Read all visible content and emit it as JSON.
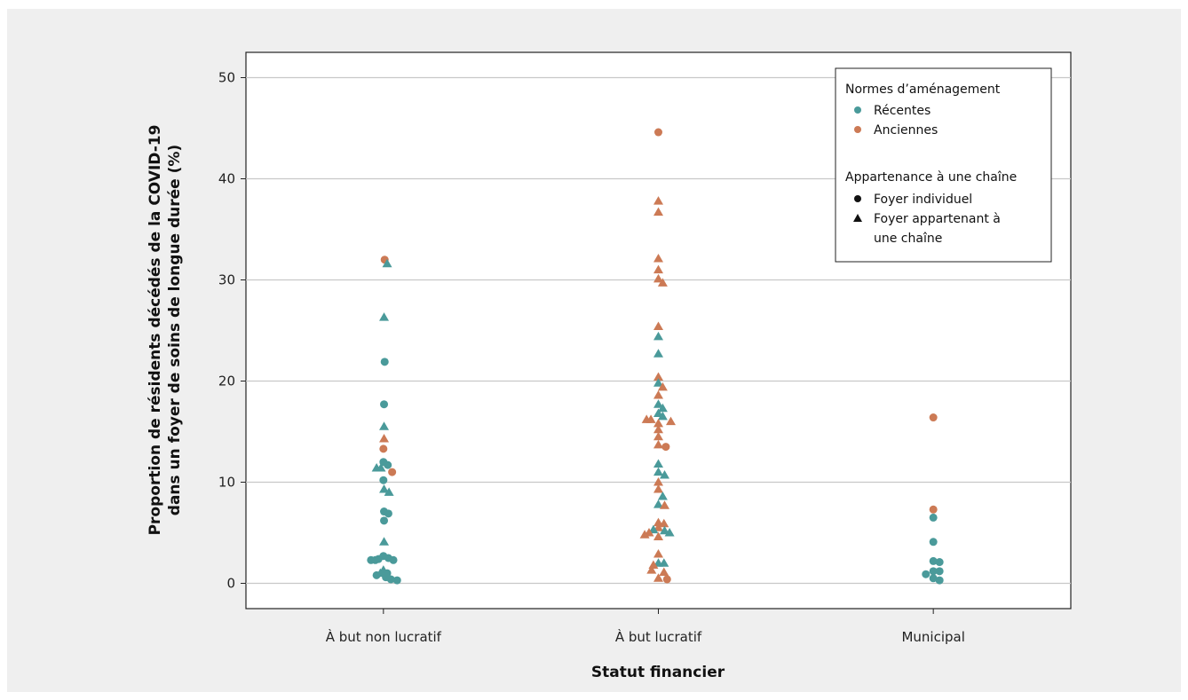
{
  "chart_data": {
    "type": "scatter",
    "xlabel": "Statut financier",
    "ylabel": [
      "Proportion de résidents décédés de la COVID-19",
      "dans un foyer de soins de longue durée (%)"
    ],
    "ylim": [
      -2.5,
      52.5
    ],
    "yticks": [
      0,
      10,
      20,
      30,
      40,
      50
    ],
    "grid": true,
    "legend_position": "top-right",
    "categories": [
      "À but non lucratif",
      "À but lucratif",
      "Municipal"
    ],
    "colors": {
      "Récentes": "#4a9a9a",
      "Anciennes": "#cc7a55"
    },
    "legend": {
      "color_title": "Normes d’aménagement",
      "color_items": [
        "Récentes",
        "Anciennes"
      ],
      "shape_title": "Appartenance à une chaîne",
      "shape_items": [
        "Foyer individuel",
        "Foyer appartenant à une chaîne"
      ]
    },
    "series": [
      {
        "category": "À but non lucratif",
        "points": [
          {
            "y": 32.0,
            "jitter": 0.2,
            "standard": "Anciennes",
            "shape": "circle"
          },
          {
            "y": 31.6,
            "jitter": 0.6,
            "standard": "Récentes",
            "shape": "triangle"
          },
          {
            "y": 26.3,
            "jitter": 0.1,
            "standard": "Récentes",
            "shape": "triangle"
          },
          {
            "y": 21.9,
            "jitter": 0.2,
            "standard": "Récentes",
            "shape": "circle"
          },
          {
            "y": 17.7,
            "jitter": 0.1,
            "standard": "Récentes",
            "shape": "circle"
          },
          {
            "y": 15.5,
            "jitter": 0.1,
            "standard": "Récentes",
            "shape": "triangle"
          },
          {
            "y": 14.3,
            "jitter": 0.1,
            "standard": "Anciennes",
            "shape": "triangle"
          },
          {
            "y": 13.3,
            "jitter": 0.0,
            "standard": "Anciennes",
            "shape": "circle"
          },
          {
            "y": 12.0,
            "jitter": 0.0,
            "standard": "Récentes",
            "shape": "circle"
          },
          {
            "y": 11.7,
            "jitter": 0.7,
            "standard": "Récentes",
            "shape": "circle"
          },
          {
            "y": 11.4,
            "jitter": -1.1,
            "standard": "Récentes",
            "shape": "triangle"
          },
          {
            "y": 11.4,
            "jitter": -0.4,
            "standard": "Récentes",
            "shape": "triangle"
          },
          {
            "y": 11.0,
            "jitter": 1.4,
            "standard": "Anciennes",
            "shape": "circle"
          },
          {
            "y": 10.2,
            "jitter": 0.0,
            "standard": "Récentes",
            "shape": "circle"
          },
          {
            "y": 9.3,
            "jitter": 0.1,
            "standard": "Récentes",
            "shape": "triangle"
          },
          {
            "y": 9.0,
            "jitter": 0.9,
            "standard": "Récentes",
            "shape": "triangle"
          },
          {
            "y": 7.1,
            "jitter": 0.1,
            "standard": "Récentes",
            "shape": "circle"
          },
          {
            "y": 6.9,
            "jitter": 0.8,
            "standard": "Récentes",
            "shape": "circle"
          },
          {
            "y": 6.2,
            "jitter": 0.1,
            "standard": "Récentes",
            "shape": "circle"
          },
          {
            "y": 4.1,
            "jitter": 0.1,
            "standard": "Récentes",
            "shape": "triangle"
          },
          {
            "y": 2.7,
            "jitter": 0.0,
            "standard": "Récentes",
            "shape": "circle"
          },
          {
            "y": 2.5,
            "jitter": 0.8,
            "standard": "Récentes",
            "shape": "circle"
          },
          {
            "y": 2.4,
            "jitter": -0.8,
            "standard": "Récentes",
            "shape": "circle"
          },
          {
            "y": 2.3,
            "jitter": -2.0,
            "standard": "Récentes",
            "shape": "circle"
          },
          {
            "y": 2.3,
            "jitter": -1.3,
            "standard": "Récentes",
            "shape": "circle"
          },
          {
            "y": 2.3,
            "jitter": 1.6,
            "standard": "Récentes",
            "shape": "circle"
          },
          {
            "y": 1.3,
            "jitter": 0.0,
            "standard": "Récentes",
            "shape": "triangle"
          },
          {
            "y": 1.0,
            "jitter": -0.5,
            "standard": "Récentes",
            "shape": "triangle"
          },
          {
            "y": 1.0,
            "jitter": 0.6,
            "standard": "Récentes",
            "shape": "circle"
          },
          {
            "y": 0.8,
            "jitter": -1.1,
            "standard": "Récentes",
            "shape": "circle"
          },
          {
            "y": 0.6,
            "jitter": 0.4,
            "standard": "Récentes",
            "shape": "circle"
          },
          {
            "y": 0.4,
            "jitter": 1.2,
            "standard": "Récentes",
            "shape": "circle"
          },
          {
            "y": 0.3,
            "jitter": 2.2,
            "standard": "Récentes",
            "shape": "circle"
          }
        ]
      },
      {
        "category": "À but lucratif",
        "points": [
          {
            "y": 44.6,
            "jitter": 0.0,
            "standard": "Anciennes",
            "shape": "circle"
          },
          {
            "y": 37.8,
            "jitter": 0.0,
            "standard": "Anciennes",
            "shape": "triangle"
          },
          {
            "y": 36.7,
            "jitter": 0.0,
            "standard": "Anciennes",
            "shape": "triangle"
          },
          {
            "y": 32.1,
            "jitter": 0.0,
            "standard": "Anciennes",
            "shape": "triangle"
          },
          {
            "y": 31.0,
            "jitter": 0.0,
            "standard": "Anciennes",
            "shape": "triangle"
          },
          {
            "y": 30.1,
            "jitter": 0.0,
            "standard": "Anciennes",
            "shape": "triangle"
          },
          {
            "y": 29.7,
            "jitter": 0.7,
            "standard": "Anciennes",
            "shape": "triangle"
          },
          {
            "y": 25.4,
            "jitter": 0.0,
            "standard": "Anciennes",
            "shape": "triangle"
          },
          {
            "y": 24.4,
            "jitter": 0.0,
            "standard": "Récentes",
            "shape": "triangle"
          },
          {
            "y": 22.7,
            "jitter": 0.0,
            "standard": "Récentes",
            "shape": "triangle"
          },
          {
            "y": 20.4,
            "jitter": 0.0,
            "standard": "Anciennes",
            "shape": "triangle"
          },
          {
            "y": 19.8,
            "jitter": 0.0,
            "standard": "Récentes",
            "shape": "triangle"
          },
          {
            "y": 19.4,
            "jitter": 0.7,
            "standard": "Anciennes",
            "shape": "triangle"
          },
          {
            "y": 18.6,
            "jitter": 0.0,
            "standard": "Anciennes",
            "shape": "triangle"
          },
          {
            "y": 17.7,
            "jitter": 0.0,
            "standard": "Récentes",
            "shape": "triangle"
          },
          {
            "y": 17.3,
            "jitter": 0.7,
            "standard": "Récentes",
            "shape": "triangle"
          },
          {
            "y": 16.8,
            "jitter": 0.0,
            "standard": "Récentes",
            "shape": "triangle"
          },
          {
            "y": 16.5,
            "jitter": 0.7,
            "standard": "Récentes",
            "shape": "triangle"
          },
          {
            "y": 16.2,
            "jitter": -1.9,
            "standard": "Anciennes",
            "shape": "triangle"
          },
          {
            "y": 16.2,
            "jitter": -1.2,
            "standard": "Anciennes",
            "shape": "triangle"
          },
          {
            "y": 16.0,
            "jitter": 2.0,
            "standard": "Anciennes",
            "shape": "triangle"
          },
          {
            "y": 15.8,
            "jitter": 0.0,
            "standard": "Anciennes",
            "shape": "triangle"
          },
          {
            "y": 15.2,
            "jitter": 0.0,
            "standard": "Anciennes",
            "shape": "triangle"
          },
          {
            "y": 14.5,
            "jitter": 0.0,
            "standard": "Anciennes",
            "shape": "triangle"
          },
          {
            "y": 13.7,
            "jitter": 0.0,
            "standard": "Anciennes",
            "shape": "triangle"
          },
          {
            "y": 13.5,
            "jitter": 1.2,
            "standard": "Anciennes",
            "shape": "circle"
          },
          {
            "y": 11.8,
            "jitter": 0.0,
            "standard": "Récentes",
            "shape": "triangle"
          },
          {
            "y": 11.0,
            "jitter": 0.0,
            "standard": "Récentes",
            "shape": "triangle"
          },
          {
            "y": 10.7,
            "jitter": 1.0,
            "standard": "Récentes",
            "shape": "triangle"
          },
          {
            "y": 10.0,
            "jitter": 0.0,
            "standard": "Anciennes",
            "shape": "triangle"
          },
          {
            "y": 9.3,
            "jitter": 0.0,
            "standard": "Anciennes",
            "shape": "triangle"
          },
          {
            "y": 8.6,
            "jitter": 0.7,
            "standard": "Récentes",
            "shape": "triangle"
          },
          {
            "y": 7.8,
            "jitter": 0.0,
            "standard": "Récentes",
            "shape": "triangle"
          },
          {
            "y": 7.7,
            "jitter": 1.0,
            "standard": "Anciennes",
            "shape": "triangle"
          },
          {
            "y": 6.0,
            "jitter": 0.0,
            "standard": "Anciennes",
            "shape": "triangle"
          },
          {
            "y": 5.9,
            "jitter": 0.9,
            "standard": "Anciennes",
            "shape": "triangle"
          },
          {
            "y": 5.5,
            "jitter": 0.0,
            "standard": "Anciennes",
            "shape": "triangle"
          },
          {
            "y": 5.3,
            "jitter": -0.8,
            "standard": "Récentes",
            "shape": "triangle"
          },
          {
            "y": 5.2,
            "jitter": 1.0,
            "standard": "Récentes",
            "shape": "triangle"
          },
          {
            "y": 5.0,
            "jitter": -1.5,
            "standard": "Anciennes",
            "shape": "triangle"
          },
          {
            "y": 5.0,
            "jitter": 1.8,
            "standard": "Récentes",
            "shape": "triangle"
          },
          {
            "y": 4.8,
            "jitter": -2.2,
            "standard": "Anciennes",
            "shape": "triangle"
          },
          {
            "y": 4.6,
            "jitter": 0.0,
            "standard": "Anciennes",
            "shape": "triangle"
          },
          {
            "y": 2.9,
            "jitter": 0.0,
            "standard": "Anciennes",
            "shape": "triangle"
          },
          {
            "y": 2.0,
            "jitter": 0.0,
            "standard": "Récentes",
            "shape": "triangle"
          },
          {
            "y": 2.0,
            "jitter": 0.9,
            "standard": "Récentes",
            "shape": "triangle"
          },
          {
            "y": 1.8,
            "jitter": -0.8,
            "standard": "Anciennes",
            "shape": "triangle"
          },
          {
            "y": 1.3,
            "jitter": -1.1,
            "standard": "Anciennes",
            "shape": "triangle"
          },
          {
            "y": 1.1,
            "jitter": 0.9,
            "standard": "Anciennes",
            "shape": "triangle"
          },
          {
            "y": 0.5,
            "jitter": 0.0,
            "standard": "Anciennes",
            "shape": "triangle"
          },
          {
            "y": 0.4,
            "jitter": 1.4,
            "standard": "Anciennes",
            "shape": "circle"
          }
        ]
      },
      {
        "category": "Municipal",
        "points": [
          {
            "y": 16.4,
            "jitter": 0.0,
            "standard": "Anciennes",
            "shape": "circle"
          },
          {
            "y": 7.3,
            "jitter": 0.0,
            "standard": "Anciennes",
            "shape": "circle"
          },
          {
            "y": 6.5,
            "jitter": 0.0,
            "standard": "Récentes",
            "shape": "circle"
          },
          {
            "y": 4.1,
            "jitter": 0.0,
            "standard": "Récentes",
            "shape": "circle"
          },
          {
            "y": 2.2,
            "jitter": 0.0,
            "standard": "Récentes",
            "shape": "circle"
          },
          {
            "y": 2.1,
            "jitter": 1.0,
            "standard": "Récentes",
            "shape": "circle"
          },
          {
            "y": 1.2,
            "jitter": 0.0,
            "standard": "Récentes",
            "shape": "circle"
          },
          {
            "y": 1.2,
            "jitter": 1.0,
            "standard": "Récentes",
            "shape": "circle"
          },
          {
            "y": 0.9,
            "jitter": -1.2,
            "standard": "Récentes",
            "shape": "circle"
          },
          {
            "y": 0.5,
            "jitter": 0.0,
            "standard": "Récentes",
            "shape": "circle"
          },
          {
            "y": 0.3,
            "jitter": 1.0,
            "standard": "Récentes",
            "shape": "circle"
          }
        ]
      }
    ]
  }
}
